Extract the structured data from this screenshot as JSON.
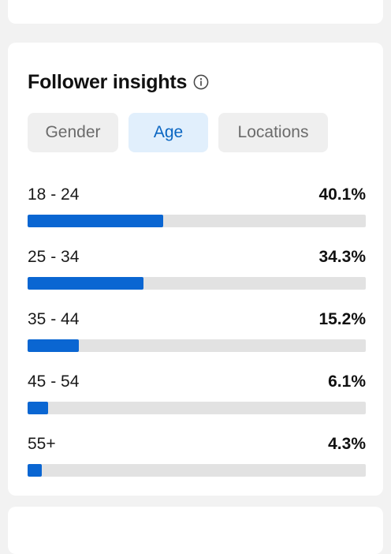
{
  "insights": {
    "title": "Follower insights",
    "info_icon": "info-circle-icon",
    "tabs": [
      {
        "label": "Gender",
        "selected": false
      },
      {
        "label": "Age",
        "selected": true
      },
      {
        "label": "Locations",
        "selected": false
      }
    ],
    "age_groups": [
      {
        "label": "18 - 24",
        "value": "40.1%",
        "percent": 40.1
      },
      {
        "label": "25 - 34",
        "value": "34.3%",
        "percent": 34.3
      },
      {
        "label": "35 - 44",
        "value": "15.2%",
        "percent": 15.2
      },
      {
        "label": "45 - 54",
        "value": "6.1%",
        "percent": 6.1
      },
      {
        "label": "55+",
        "value": "4.3%",
        "percent": 4.3
      }
    ]
  },
  "colors": {
    "accent": "#0a66d2",
    "selected_tab_bg": "#e1effc",
    "selected_tab_text": "#0a66c2",
    "tab_bg": "#efefef",
    "track": "#e2e2e2",
    "page_bg": "#f2f2f2"
  }
}
